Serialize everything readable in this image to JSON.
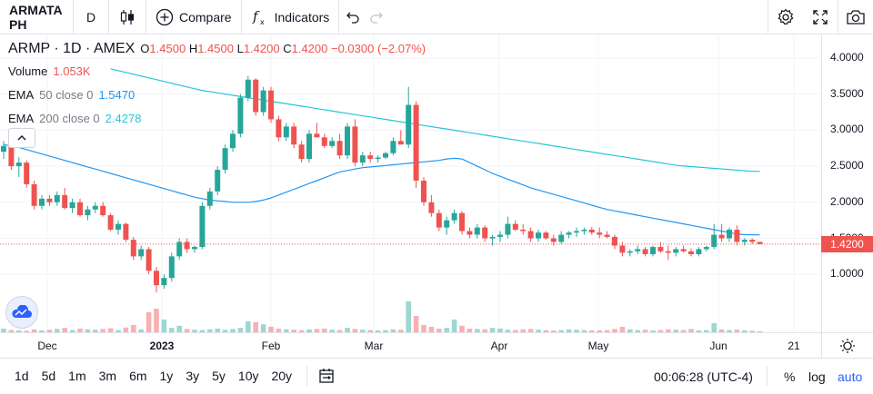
{
  "toolbar": {
    "symbol": "ARMATA PH",
    "interval": "D",
    "compare_label": "Compare",
    "indicators_label": "Indicators"
  },
  "legend": {
    "title": "ARMP · 1D · AMEX",
    "o_key": "O",
    "o_val": "1.4500",
    "h_key": "H",
    "h_val": "1.4500",
    "l_key": "L",
    "l_val": "1.4200",
    "c_key": "C",
    "c_val": "1.4200",
    "change": "−0.0300 (−2.07%)",
    "volume_label": "Volume",
    "volume_val": "1.053K",
    "ema50_label": "EMA",
    "ema50_params": "50 close 0",
    "ema50_val": "1.5470",
    "ema200_label": "EMA",
    "ema200_params": "200 close 0",
    "ema200_val": "2.4278"
  },
  "price_axis": {
    "labels": [
      "4.0000",
      "3.5000",
      "3.0000",
      "2.5000",
      "2.0000",
      "1.5000",
      "1.0000"
    ],
    "last_price": "1.4200"
  },
  "time_axis": {
    "labels": [
      "Dec",
      "2023",
      "Feb",
      "Mar",
      "Apr",
      "May",
      "Jun",
      "21"
    ]
  },
  "bottom_bar": {
    "ranges": [
      "1d",
      "5d",
      "1m",
      "3m",
      "6m",
      "1y",
      "3y",
      "5y",
      "10y",
      "20y"
    ],
    "clock": "00:06:28 (UTC-4)",
    "percent": "%",
    "log": "log",
    "auto": "auto"
  },
  "colors": {
    "up": "#26a69a",
    "down": "#ef5350",
    "ema50": "#2196f3",
    "ema200": "#26c6da",
    "accent": "#2962ff"
  },
  "chart_data": {
    "type": "candlestick",
    "ylim": [
      0.55,
      4.2
    ],
    "ema50": [
      2.8,
      2.78,
      2.76,
      2.73,
      2.7,
      2.67,
      2.64,
      2.61,
      2.58,
      2.55,
      2.52,
      2.49,
      2.46,
      2.43,
      2.4,
      2.37,
      2.34,
      2.31,
      2.28,
      2.25,
      2.22,
      2.19,
      2.16,
      2.13,
      2.1,
      2.07,
      2.05,
      2.03,
      2.02,
      2.01,
      2.0,
      2.0,
      2.0,
      2.01,
      2.03,
      2.06,
      2.1,
      2.14,
      2.18,
      2.22,
      2.26,
      2.3,
      2.34,
      2.38,
      2.42,
      2.44,
      2.46,
      2.48,
      2.49,
      2.5,
      2.51,
      2.52,
      2.53,
      2.54,
      2.55,
      2.56,
      2.57,
      2.58,
      2.6,
      2.61,
      2.6,
      2.55,
      2.5,
      2.45,
      2.4,
      2.36,
      2.32,
      2.28,
      2.24,
      2.2,
      2.17,
      2.14,
      2.11,
      2.08,
      2.05,
      2.02,
      1.99,
      1.96,
      1.93,
      1.9,
      1.88,
      1.86,
      1.84,
      1.82,
      1.8,
      1.78,
      1.76,
      1.74,
      1.72,
      1.7,
      1.68,
      1.66,
      1.64,
      1.62,
      1.6,
      1.58,
      1.56,
      1.55,
      1.55,
      1.547
    ],
    "ema200": [
      3.85,
      3.82,
      3.79,
      3.76,
      3.73,
      3.7,
      3.67,
      3.64,
      3.61,
      3.58,
      3.55,
      3.53,
      3.51,
      3.49,
      3.47,
      3.45,
      3.43,
      3.41,
      3.39,
      3.37,
      3.35,
      3.33,
      3.31,
      3.29,
      3.27,
      3.25,
      3.23,
      3.21,
      3.19,
      3.17,
      3.15,
      3.13,
      3.11,
      3.09,
      3.07,
      3.05,
      3.03,
      3.01,
      2.99,
      2.97,
      2.95,
      2.93,
      2.91,
      2.89,
      2.87,
      2.85,
      2.83,
      2.81,
      2.79,
      2.77,
      2.75,
      2.73,
      2.71,
      2.69,
      2.67,
      2.65,
      2.63,
      2.61,
      2.59,
      2.57,
      2.55,
      2.53,
      2.51,
      2.5,
      2.49,
      2.48,
      2.47,
      2.46,
      2.45,
      2.44,
      2.43,
      2.428
    ],
    "candles": [
      [
        2.7,
        2.85,
        2.6,
        2.78
      ],
      [
        2.78,
        2.8,
        2.45,
        2.5
      ],
      [
        2.5,
        2.62,
        2.35,
        2.55
      ],
      [
        2.55,
        2.58,
        2.2,
        2.25
      ],
      [
        2.25,
        2.3,
        1.9,
        1.95
      ],
      [
        1.95,
        2.1,
        1.9,
        2.05
      ],
      [
        2.05,
        2.1,
        1.95,
        2.0
      ],
      [
        2.0,
        2.15,
        1.95,
        2.1
      ],
      [
        2.1,
        2.2,
        1.9,
        1.92
      ],
      [
        1.92,
        2.05,
        1.85,
        2.0
      ],
      [
        2.0,
        2.05,
        1.8,
        1.82
      ],
      [
        1.82,
        1.95,
        1.75,
        1.9
      ],
      [
        1.9,
        2.0,
        1.85,
        1.95
      ],
      [
        1.95,
        2.0,
        1.8,
        1.82
      ],
      [
        1.82,
        1.85,
        1.6,
        1.62
      ],
      [
        1.62,
        1.75,
        1.55,
        1.7
      ],
      [
        1.7,
        1.72,
        1.45,
        1.48
      ],
      [
        1.48,
        1.52,
        1.2,
        1.25
      ],
      [
        1.25,
        1.4,
        1.2,
        1.35
      ],
      [
        1.35,
        1.38,
        1.0,
        1.05
      ],
      [
        1.05,
        1.1,
        0.75,
        0.85
      ],
      [
        0.85,
        1.0,
        0.8,
        0.95
      ],
      [
        0.95,
        1.3,
        0.9,
        1.25
      ],
      [
        1.25,
        1.5,
        1.2,
        1.45
      ],
      [
        1.45,
        1.5,
        1.3,
        1.35
      ],
      [
        1.35,
        1.4,
        1.3,
        1.38
      ],
      [
        1.38,
        2.0,
        1.35,
        1.95
      ],
      [
        1.95,
        2.2,
        1.9,
        2.15
      ],
      [
        2.15,
        2.5,
        2.1,
        2.45
      ],
      [
        2.45,
        2.8,
        2.4,
        2.75
      ],
      [
        2.75,
        3.0,
        2.7,
        2.95
      ],
      [
        2.95,
        3.5,
        2.9,
        3.45
      ],
      [
        3.45,
        3.75,
        3.4,
        3.7
      ],
      [
        3.7,
        3.72,
        3.2,
        3.25
      ],
      [
        3.25,
        3.6,
        3.2,
        3.55
      ],
      [
        3.55,
        3.6,
        3.1,
        3.15
      ],
      [
        3.15,
        3.2,
        2.85,
        2.9
      ],
      [
        2.9,
        3.1,
        2.85,
        3.05
      ],
      [
        3.05,
        3.1,
        2.75,
        2.8
      ],
      [
        2.8,
        2.85,
        2.55,
        2.6
      ],
      [
        2.6,
        3.0,
        2.55,
        2.95
      ],
      [
        2.95,
        3.1,
        2.9,
        2.9
      ],
      [
        2.9,
        2.95,
        2.75,
        2.78
      ],
      [
        2.78,
        2.9,
        2.75,
        2.85
      ],
      [
        2.85,
        2.95,
        2.6,
        2.65
      ],
      [
        2.65,
        3.1,
        2.6,
        3.05
      ],
      [
        3.05,
        3.15,
        2.5,
        2.55
      ],
      [
        2.55,
        2.7,
        2.5,
        2.65
      ],
      [
        2.65,
        2.7,
        2.55,
        2.6
      ],
      [
        2.6,
        2.65,
        2.55,
        2.62
      ],
      [
        2.62,
        2.7,
        2.6,
        2.68
      ],
      [
        2.68,
        2.9,
        2.65,
        2.85
      ],
      [
        2.85,
        3.0,
        2.8,
        2.8
      ],
      [
        2.8,
        3.6,
        2.75,
        3.35
      ],
      [
        3.35,
        3.4,
        2.2,
        2.3
      ],
      [
        2.3,
        2.35,
        1.95,
        2.0
      ],
      [
        2.0,
        2.1,
        1.8,
        1.85
      ],
      [
        1.85,
        1.9,
        1.6,
        1.65
      ],
      [
        1.65,
        1.8,
        1.55,
        1.75
      ],
      [
        1.75,
        1.9,
        1.7,
        1.85
      ],
      [
        1.85,
        1.88,
        1.55,
        1.6
      ],
      [
        1.6,
        1.65,
        1.5,
        1.55
      ],
      [
        1.55,
        1.7,
        1.5,
        1.65
      ],
      [
        1.65,
        1.68,
        1.45,
        1.5
      ],
      [
        1.5,
        1.55,
        1.4,
        1.52
      ],
      [
        1.52,
        1.6,
        1.45,
        1.55
      ],
      [
        1.55,
        1.8,
        1.5,
        1.7
      ],
      [
        1.7,
        1.75,
        1.6,
        1.62
      ],
      [
        1.62,
        1.7,
        1.55,
        1.6
      ],
      [
        1.6,
        1.65,
        1.45,
        1.5
      ],
      [
        1.5,
        1.62,
        1.45,
        1.58
      ],
      [
        1.58,
        1.6,
        1.48,
        1.5
      ],
      [
        1.5,
        1.55,
        1.4,
        1.45
      ],
      [
        1.45,
        1.6,
        1.42,
        1.55
      ],
      [
        1.55,
        1.6,
        1.5,
        1.58
      ],
      [
        1.58,
        1.65,
        1.52,
        1.6
      ],
      [
        1.6,
        1.65,
        1.55,
        1.62
      ],
      [
        1.62,
        1.66,
        1.55,
        1.58
      ],
      [
        1.58,
        1.65,
        1.5,
        1.55
      ],
      [
        1.55,
        1.6,
        1.5,
        1.52
      ],
      [
        1.52,
        1.55,
        1.35,
        1.4
      ],
      [
        1.4,
        1.45,
        1.25,
        1.3
      ],
      [
        1.3,
        1.35,
        1.25,
        1.32
      ],
      [
        1.32,
        1.4,
        1.28,
        1.35
      ],
      [
        1.35,
        1.38,
        1.25,
        1.28
      ],
      [
        1.28,
        1.4,
        1.25,
        1.38
      ],
      [
        1.38,
        1.45,
        1.3,
        1.32
      ],
      [
        1.32,
        1.4,
        1.2,
        1.3
      ],
      [
        1.3,
        1.38,
        1.25,
        1.35
      ],
      [
        1.35,
        1.4,
        1.3,
        1.32
      ],
      [
        1.32,
        1.36,
        1.25,
        1.28
      ],
      [
        1.28,
        1.38,
        1.25,
        1.35
      ],
      [
        1.35,
        1.4,
        1.32,
        1.38
      ],
      [
        1.38,
        1.7,
        1.35,
        1.55
      ],
      [
        1.55,
        1.7,
        1.45,
        1.5
      ],
      [
        1.5,
        1.65,
        1.45,
        1.62
      ],
      [
        1.62,
        1.68,
        1.4,
        1.45
      ],
      [
        1.45,
        1.5,
        1.4,
        1.48
      ],
      [
        1.48,
        1.5,
        1.42,
        1.45
      ],
      [
        1.45,
        1.45,
        1.42,
        1.42
      ]
    ],
    "volume": [
      0.1,
      0.06,
      0.05,
      0.04,
      0.08,
      0.05,
      0.07,
      0.09,
      0.12,
      0.06,
      0.1,
      0.08,
      0.07,
      0.09,
      0.11,
      0.06,
      0.13,
      0.2,
      0.08,
      0.55,
      0.65,
      0.35,
      0.12,
      0.18,
      0.09,
      0.07,
      0.06,
      0.08,
      0.1,
      0.07,
      0.09,
      0.12,
      0.3,
      0.28,
      0.22,
      0.15,
      0.1,
      0.08,
      0.07,
      0.06,
      0.08,
      0.09,
      0.1,
      0.07,
      0.06,
      0.12,
      0.09,
      0.07,
      0.06,
      0.05,
      0.06,
      0.08,
      0.07,
      0.85,
      0.45,
      0.2,
      0.15,
      0.1,
      0.12,
      0.35,
      0.18,
      0.1,
      0.09,
      0.08,
      0.12,
      0.1,
      0.07,
      0.06,
      0.08,
      0.09,
      0.07,
      0.06,
      0.05,
      0.06,
      0.08,
      0.07,
      0.06,
      0.05,
      0.05,
      0.06,
      0.09,
      0.15,
      0.08,
      0.06,
      0.07,
      0.05,
      0.06,
      0.08,
      0.07,
      0.06,
      0.09,
      0.05,
      0.06,
      0.25,
      0.08,
      0.06,
      0.07,
      0.05,
      0.04,
      0.03
    ]
  }
}
